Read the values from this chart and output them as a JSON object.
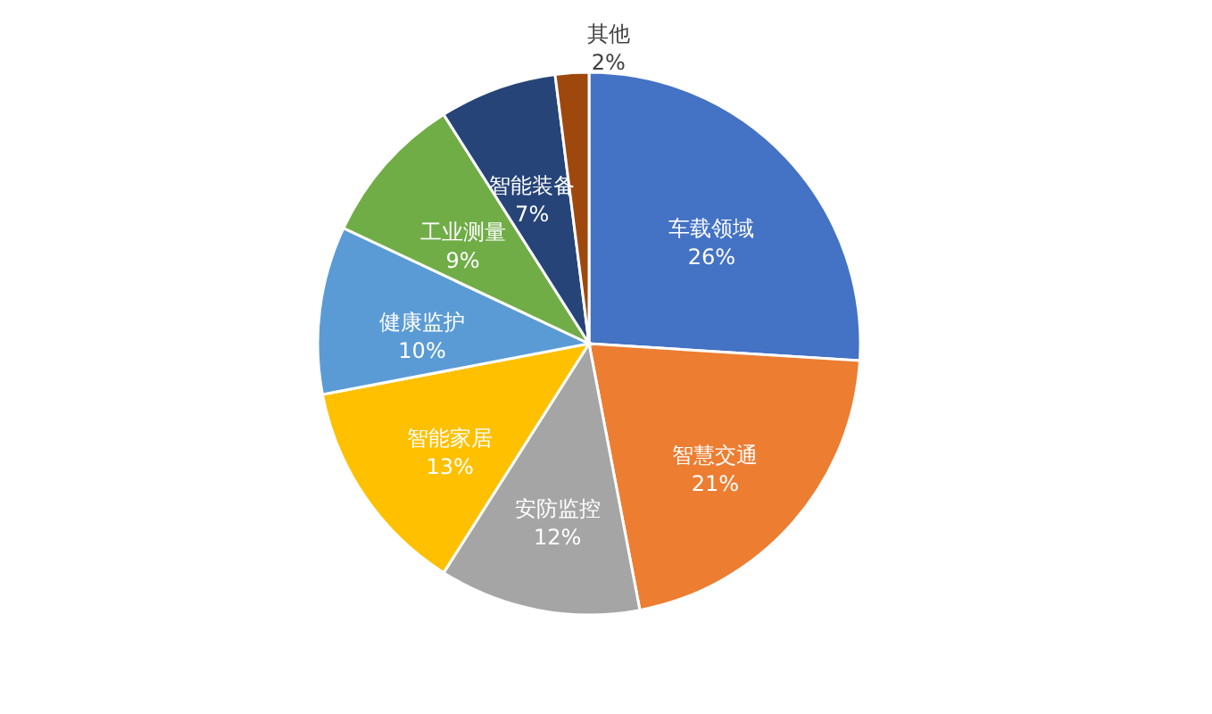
{
  "chart_data": {
    "type": "pie",
    "categories": [
      "车载领域",
      "智慧交通",
      "安防监控",
      "智能家居",
      "健康监护",
      "工业测量",
      "智能装备",
      "其他"
    ],
    "values": [
      26,
      21,
      12,
      13,
      10,
      9,
      7,
      2
    ],
    "colors": [
      "#4472c4",
      "#ed7d31",
      "#a5a5a5",
      "#ffc000",
      "#5b9bd5",
      "#70ad47",
      "#264478",
      "#9e480e"
    ],
    "value_labels": [
      "26%",
      "21%",
      "12%",
      "13%",
      "10%",
      "9%",
      "7%",
      "2%"
    ],
    "legend": false
  }
}
